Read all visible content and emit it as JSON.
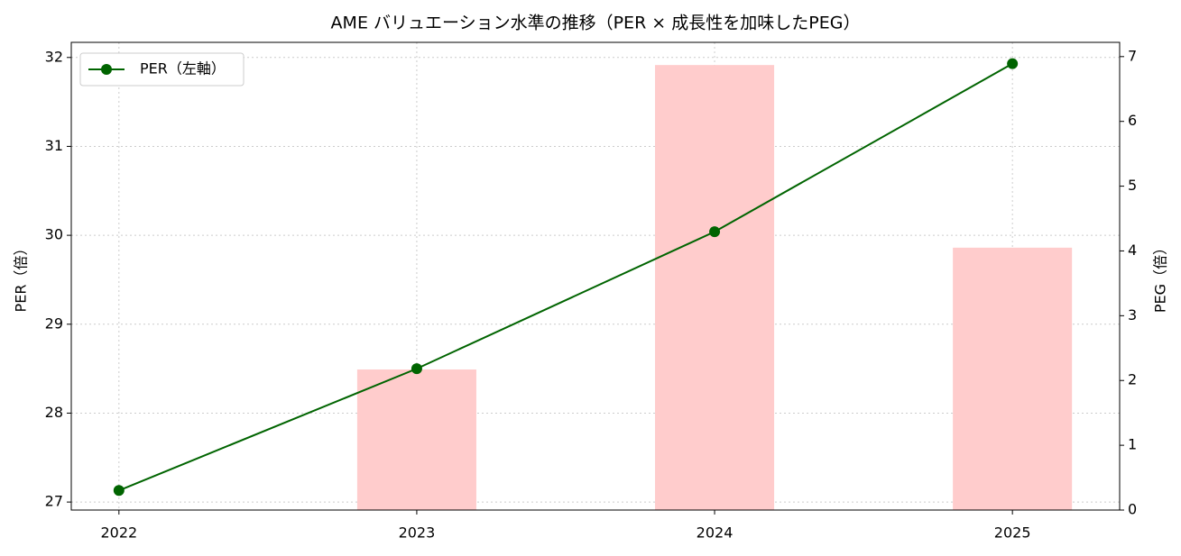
{
  "chart_data": {
    "type": "line",
    "title": "AME バリュエーション水準の推移（PER × 成長性を加味したPEG）",
    "y_label": "PER（倍）",
    "y2_label": "PEG（倍）",
    "x": [
      2022,
      2023,
      2024,
      2025
    ],
    "xlim": [
      2021.84,
      2025.36
    ],
    "xticks": [
      2022,
      2023,
      2024,
      2025
    ],
    "ylim": [
      26.91,
      32.17
    ],
    "yticks": [
      27,
      28,
      29,
      30,
      31,
      32
    ],
    "y2lim": [
      0,
      7.22
    ],
    "y2ticks": [
      0,
      1,
      2,
      3,
      4,
      5,
      6,
      7
    ],
    "grid": true,
    "legend": "upper left",
    "series": [
      {
        "name": "PER（左軸）",
        "type": "line",
        "color": "#006400",
        "values": [
          27.13,
          28.5,
          30.04,
          31.93
        ]
      },
      {
        "type": "bar",
        "color": "#ffcccc",
        "axis": "y2",
        "bar_width": 0.4,
        "values": [
          null,
          2.17,
          6.87,
          4.05
        ]
      }
    ]
  }
}
